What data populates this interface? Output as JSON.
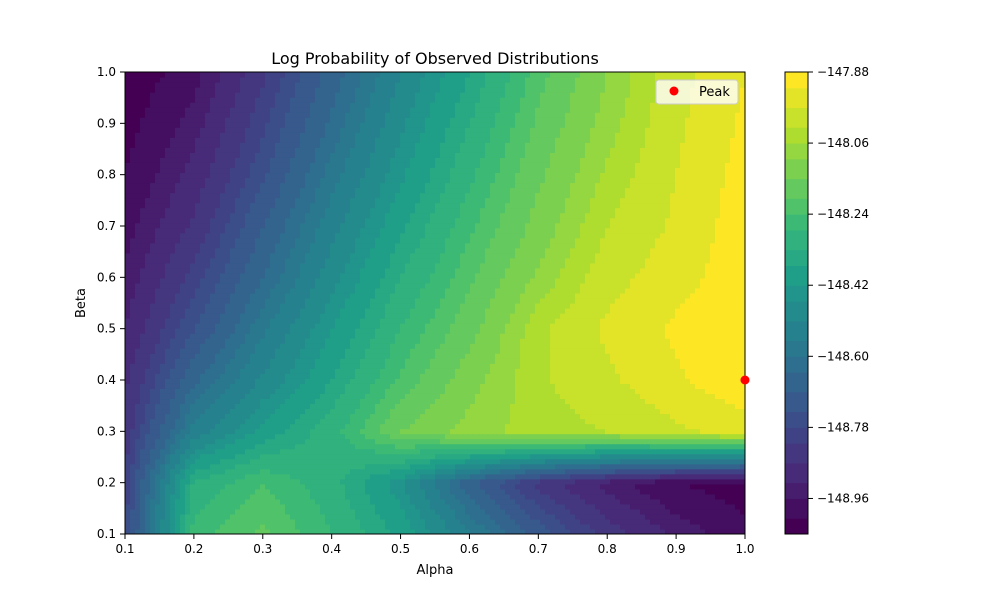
{
  "chart_data": {
    "type": "heatmap",
    "title": "Log Probability of Observed Distributions",
    "xlabel": "Alpha",
    "ylabel": "Beta",
    "xlim": [
      0.1,
      1.0
    ],
    "ylim": [
      0.1,
      1.0
    ],
    "x_ticks": [
      "0.1",
      "0.2",
      "0.3",
      "0.4",
      "0.5",
      "0.6",
      "0.7",
      "0.8",
      "0.9",
      "1.0"
    ],
    "y_ticks": [
      "0.1",
      "0.2",
      "0.3",
      "0.4",
      "0.5",
      "0.6",
      "0.7",
      "0.8",
      "0.9",
      "1.0"
    ],
    "grid_alpha": [
      0.1,
      0.2,
      0.3,
      0.4,
      0.5,
      0.6,
      0.7,
      0.8,
      0.9,
      1.0
    ],
    "grid_beta": [
      0.1,
      0.2,
      0.3,
      0.4,
      0.5,
      0.6,
      0.7,
      0.8,
      0.9,
      1.0
    ],
    "z": [
      [
        -148.78,
        -148.26,
        -148.19,
        -148.28,
        -148.38,
        -148.55,
        -148.71,
        -148.84,
        -148.93,
        -148.99
      ],
      [
        -148.81,
        -148.32,
        -148.24,
        -148.31,
        -148.45,
        -148.68,
        -148.84,
        -148.94,
        -149.01,
        -149.04
      ],
      [
        -148.85,
        -148.54,
        -148.4,
        -148.3,
        -148.15,
        -148.08,
        -148.04,
        -148.02,
        -147.98,
        -147.95
      ],
      [
        -148.88,
        -148.65,
        -148.5,
        -148.37,
        -148.23,
        -148.12,
        -148.03,
        -147.98,
        -147.93,
        -147.875
      ],
      [
        -148.92,
        -148.74,
        -148.57,
        -148.42,
        -148.28,
        -148.17,
        -148.03,
        -147.96,
        -147.91,
        -147.88
      ],
      [
        -148.95,
        -148.8,
        -148.64,
        -148.48,
        -148.33,
        -148.21,
        -148.09,
        -147.99,
        -147.94,
        -147.89
      ],
      [
        -148.98,
        -148.86,
        -148.69,
        -148.53,
        -148.38,
        -148.25,
        -148.13,
        -148.02,
        -147.96,
        -147.89
      ],
      [
        -149.01,
        -148.9,
        -148.75,
        -148.58,
        -148.43,
        -148.29,
        -148.16,
        -148.05,
        -147.97,
        -147.9
      ],
      [
        -149.03,
        -148.94,
        -148.79,
        -148.63,
        -148.47,
        -148.33,
        -148.19,
        -148.08,
        -147.98,
        -147.91
      ],
      [
        -149.05,
        -148.98,
        -148.83,
        -148.67,
        -148.51,
        -148.37,
        -148.22,
        -148.1,
        -147.99,
        -147.92
      ]
    ],
    "levels": [
      -149.05,
      -149.01,
      -148.96,
      -148.92,
      -148.87,
      -148.82,
      -148.78,
      -148.74,
      -148.69,
      -148.64,
      -148.6,
      -148.56,
      -148.51,
      -148.46,
      -148.42,
      -148.37,
      -148.33,
      -148.28,
      -148.24,
      -148.2,
      -148.15,
      -148.1,
      -148.06,
      -148.02,
      -147.97,
      -147.92,
      -147.88
    ],
    "colorbar_ticks": [
      "−147.88",
      "−148.06",
      "−148.24",
      "−148.42",
      "−148.60",
      "−148.78",
      "−148.96"
    ],
    "colorbar_tick_values": [
      -147.88,
      -148.06,
      -148.24,
      -148.42,
      -148.6,
      -148.78,
      -148.96
    ],
    "colormap": "viridis",
    "peak": {
      "alpha": 1.0,
      "beta": 0.4,
      "color": "#ff0000"
    },
    "legend": {
      "label": "Peak",
      "placement": "top-right"
    }
  }
}
